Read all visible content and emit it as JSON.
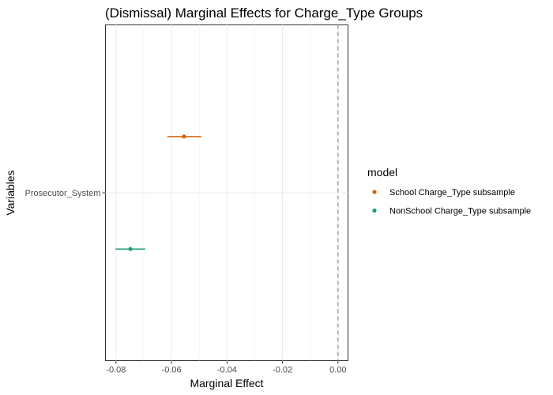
{
  "chart_data": {
    "type": "scatter",
    "title": "(Dismissal) Marginal Effects for Charge_Type Groups",
    "xlabel": "Marginal Effect",
    "ylabel": "Variables",
    "xlim": [
      -0.0838,
      0.0036
    ],
    "x_ticks": [
      -0.08,
      -0.06,
      -0.04,
      -0.02,
      0.0
    ],
    "x_tick_labels": [
      "-0.08",
      "-0.06",
      "-0.04",
      "-0.02",
      "0.00"
    ],
    "categories": [
      "Prosecutor_System"
    ],
    "reference_line": 0.0,
    "grid": true,
    "legend": {
      "title": "model",
      "position": "right"
    },
    "series": [
      {
        "name": "School Charge_Type subsample",
        "color": "#d95f02",
        "points": [
          {
            "category": "Prosecutor_System",
            "estimate": -0.0555,
            "ci_low": -0.0615,
            "ci_high": -0.0493
          }
        ]
      },
      {
        "name": "NonSchool Charge_Type subsample",
        "color": "#1b9e77",
        "points": [
          {
            "category": "Prosecutor_System",
            "estimate": -0.0748,
            "ci_low": -0.0802,
            "ci_high": -0.0695
          }
        ]
      }
    ]
  }
}
